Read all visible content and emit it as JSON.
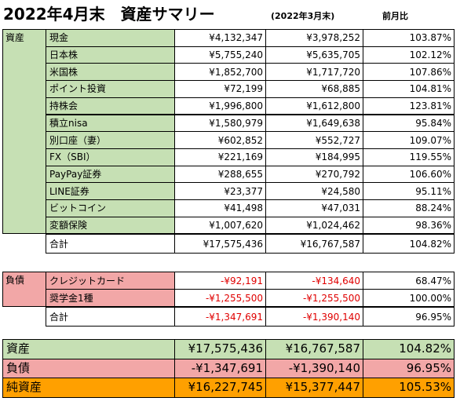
{
  "title": "2022年4月末　資産サマリー",
  "prev_header": "(2022年3月末)",
  "ratio_header": "前月比",
  "assets": {
    "label": "資産",
    "rows": [
      [
        "現金",
        "¥4,132,347",
        "¥3,978,252",
        "103.87%"
      ],
      [
        "日本株",
        "¥5,755,240",
        "¥5,635,705",
        "102.12%"
      ],
      [
        "米国株",
        "¥1,852,700",
        "¥1,717,720",
        "107.86%"
      ],
      [
        "ポイント投資",
        "¥72,199",
        "¥68,885",
        "104.81%"
      ],
      [
        "持株会",
        "¥1,996,800",
        "¥1,612,800",
        "123.81%"
      ],
      [
        "積立nisa",
        "¥1,580,979",
        "¥1,649,638",
        "95.84%"
      ],
      [
        "別口座（妻）",
        "¥602,852",
        "¥552,727",
        "109.07%"
      ],
      [
        "FX（SBI）",
        "¥221,169",
        "¥184,995",
        "119.55%"
      ],
      [
        "PayPay証券",
        "¥288,655",
        "¥270,792",
        "106.60%"
      ],
      [
        "LINE証券",
        "¥23,377",
        "¥24,580",
        "95.11%"
      ],
      [
        "ビットコイン",
        "¥41,498",
        "¥47,031",
        "88.24%"
      ],
      [
        "変額保険",
        "¥1,007,620",
        "¥1,024,462",
        "98.36%"
      ]
    ],
    "total": [
      "合計",
      "¥17,575,436",
      "¥16,767,587",
      "104.82%"
    ]
  },
  "liabilities": {
    "label": "負債",
    "rows": [
      [
        "クレジットカード",
        "-¥92,191",
        "-¥134,640",
        "68.47%"
      ],
      [
        "奨学金1種",
        "-¥1,255,500",
        "-¥1,255,500",
        "100.00%"
      ]
    ],
    "total": [
      "合計",
      "-¥1,347,691",
      "-¥1,390,140",
      "96.95%"
    ]
  },
  "summary": [
    [
      "資産",
      "¥17,575,436",
      "¥16,767,587",
      "104.82%"
    ],
    [
      "負債",
      "-¥1,347,691",
      "-¥1,390,140",
      "96.95%"
    ],
    [
      "純資産",
      "¥16,227,745",
      "¥15,377,447",
      "105.53%"
    ]
  ]
}
